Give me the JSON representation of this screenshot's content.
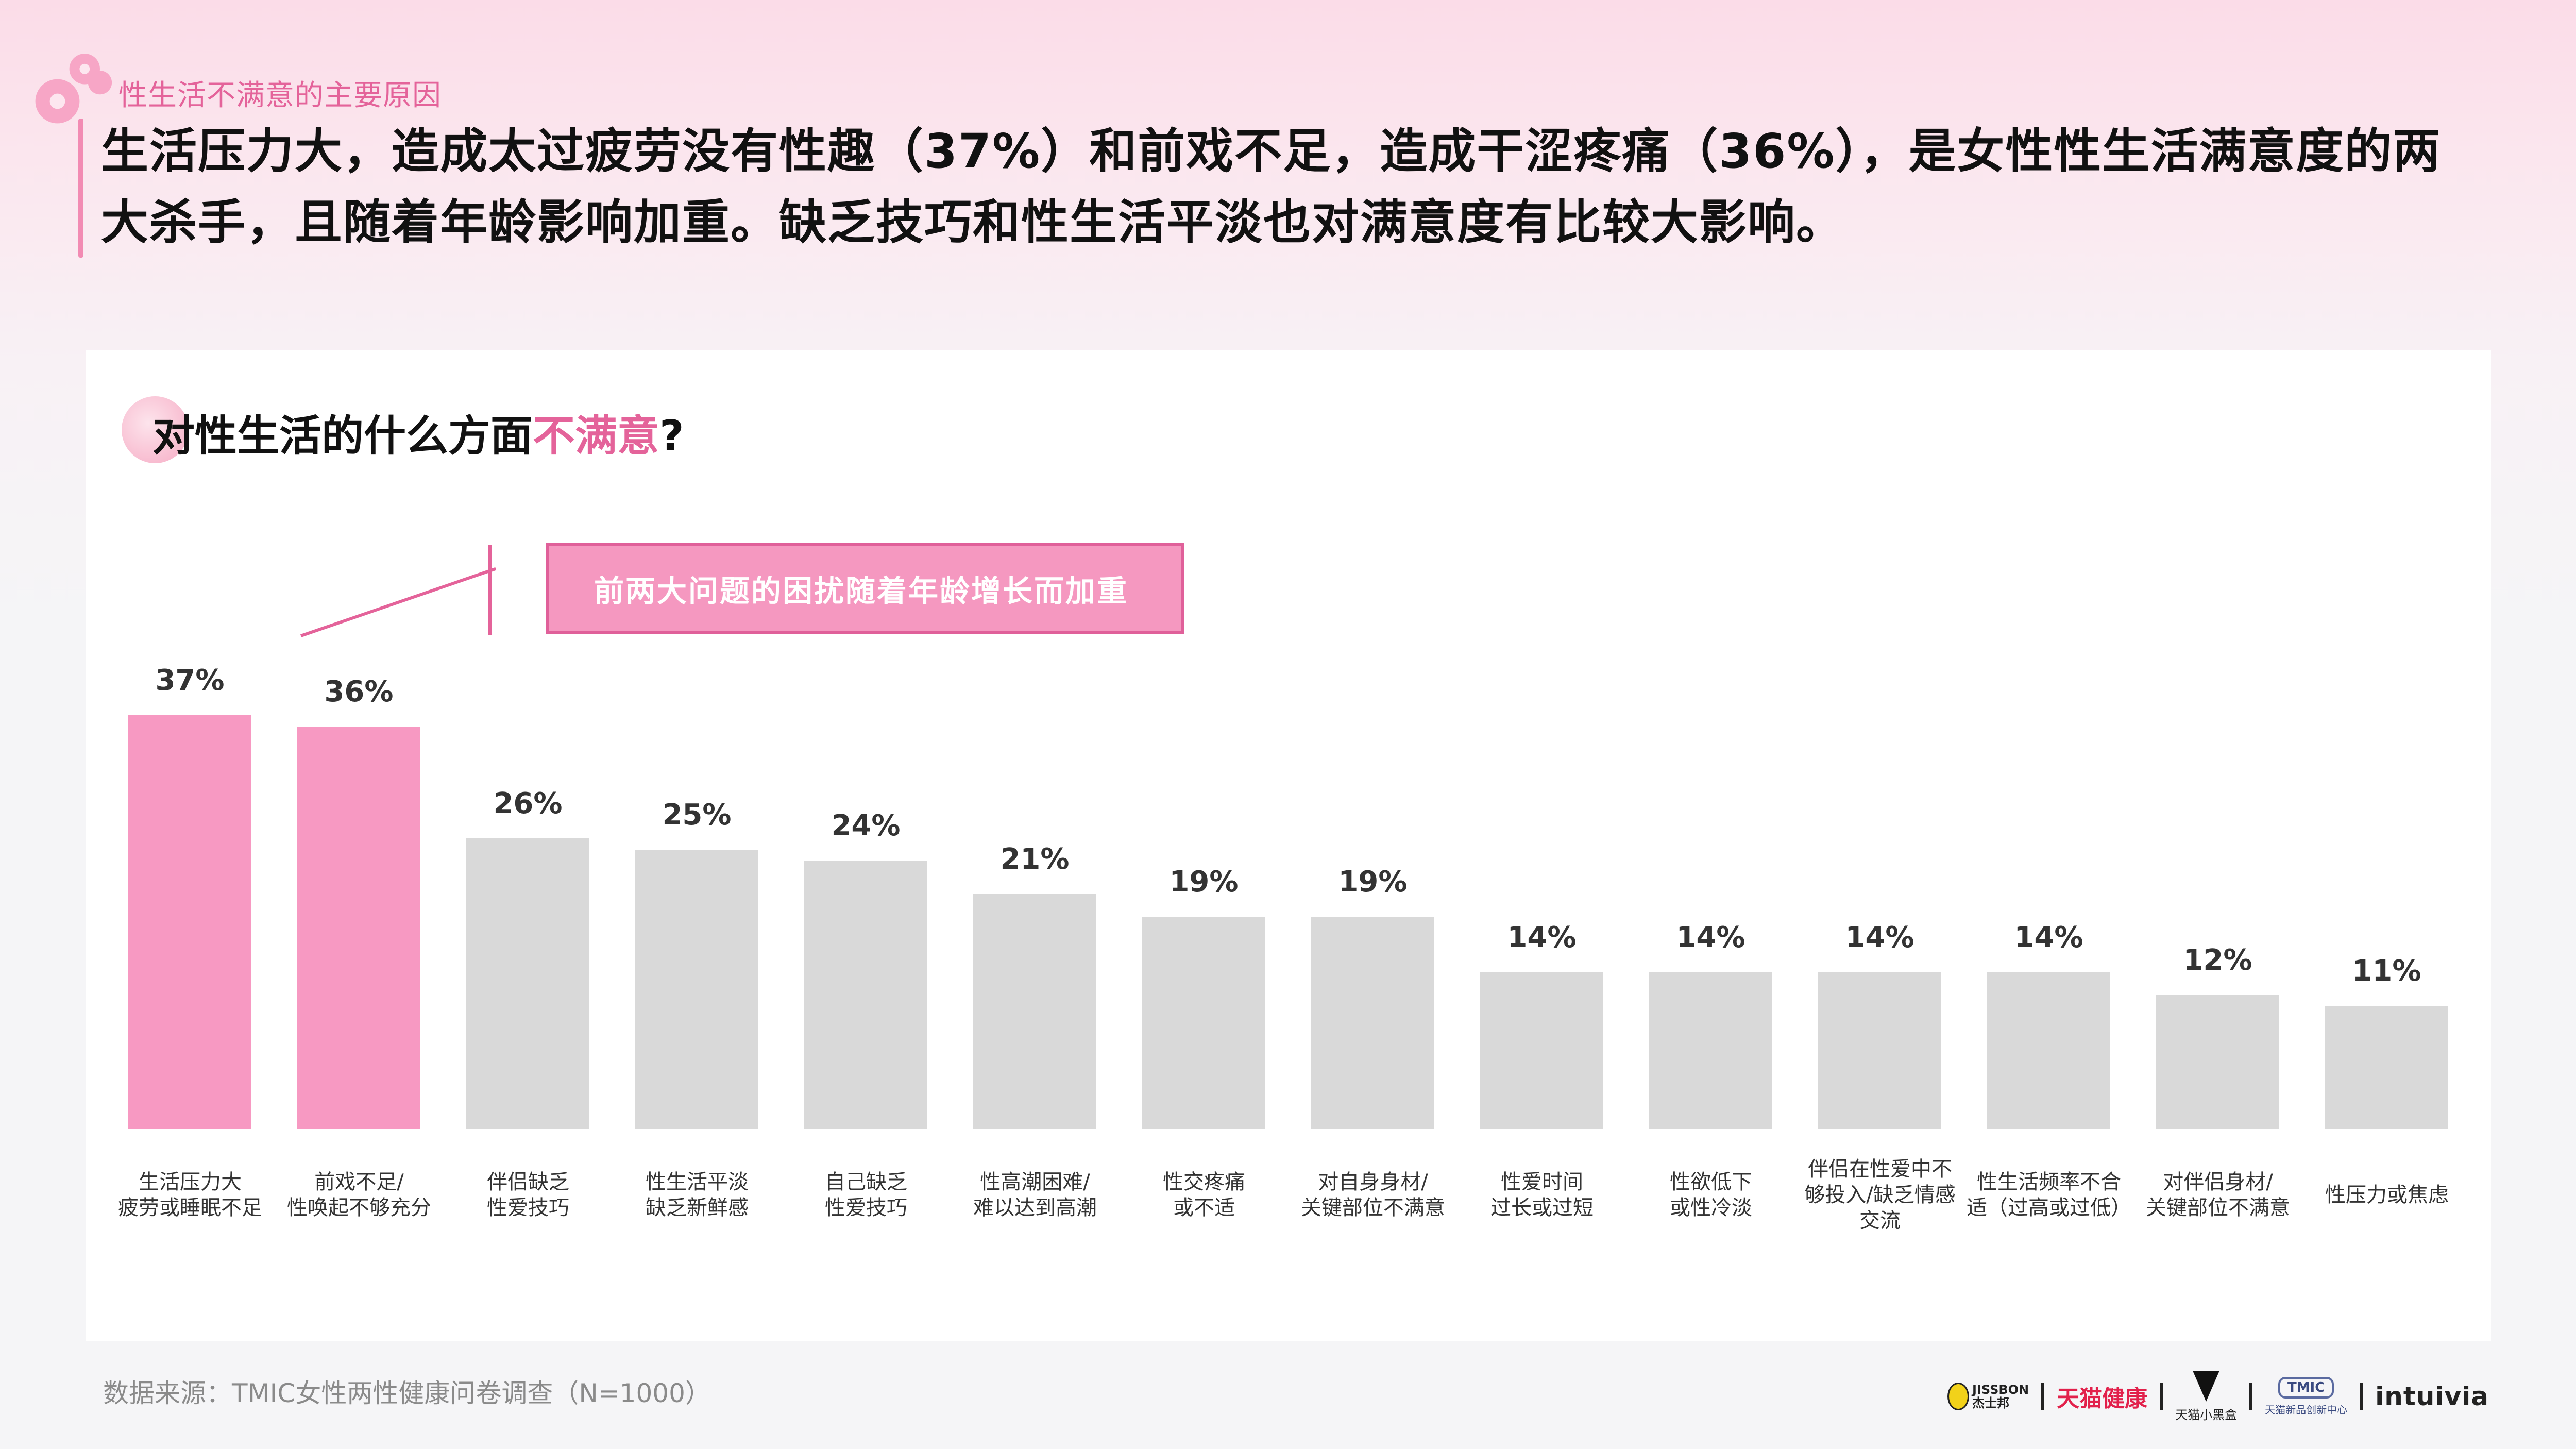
{
  "header": {
    "kicker": "性生活不满意的主要原因",
    "headline": "生活压力大，造成太过疲劳没有性趣（37%）和前戏不足，造成干涩疼痛（36%），是女性性生活满意度的两大杀手，且随着年龄影响加重。缺乏技巧和性生活平淡也对满意度有比较大影响。"
  },
  "question": {
    "prefix": "对性生活的什么方面",
    "highlight": "不满意",
    "suffix": "?"
  },
  "callout": {
    "text": "前两大问题的困扰随着年龄增长而加重"
  },
  "colors": {
    "highlight_bar": "#f799c2",
    "normal_bar": "#d9d9d9",
    "accent": "#e4639a"
  },
  "chart_data": {
    "type": "bar",
    "title": "对性生活的什么方面不满意?",
    "categories": [
      "生活压力大\n疲劳或睡眠不足",
      "前戏不足/\n性唤起不够充分",
      "伴侣缺乏\n性爱技巧",
      "性生活平淡\n缺乏新鲜感",
      "自己缺乏\n性爱技巧",
      "性高潮困难/\n难以达到高潮",
      "性交疼痛\n或不适",
      "对自身身材/\n关键部位不满意",
      "性爱时间\n过长或过短",
      "性欲低下\n或性冷淡",
      "伴侣在性爱中不\n够投入/缺乏情感\n交流",
      "性生活频率不合\n适（过高或过低）",
      "对伴侣身材/\n关键部位不满意",
      "性压力或焦虑"
    ],
    "values": [
      37,
      36,
      26,
      25,
      24,
      21,
      19,
      19,
      14,
      14,
      14,
      14,
      12,
      11
    ],
    "value_labels": [
      "37%",
      "36%",
      "26%",
      "25%",
      "24%",
      "21%",
      "19%",
      "19%",
      "14%",
      "14%",
      "14%",
      "14%",
      "12%",
      "11%"
    ],
    "highlighted": [
      true,
      true,
      false,
      false,
      false,
      false,
      false,
      false,
      false,
      false,
      false,
      false,
      false,
      false
    ],
    "xlabel": "",
    "ylabel": "",
    "unit": "%",
    "grid": false,
    "legend": null,
    "annotation": "前两大问题的困扰随着年龄增长而加重"
  },
  "footer": {
    "source": "数据来源：TMIC女性两性健康问卷调查（N=1000）",
    "logos": {
      "jissbon_en": "JISSBON",
      "jissbon_cn": "杰士邦",
      "tmall_health": "天猫健康",
      "tmall_box": "天猫小黑盒",
      "tmic_badge": "TMIC",
      "tmic_text": "天猫新品创新中心",
      "intuivia": "intuivia"
    }
  }
}
